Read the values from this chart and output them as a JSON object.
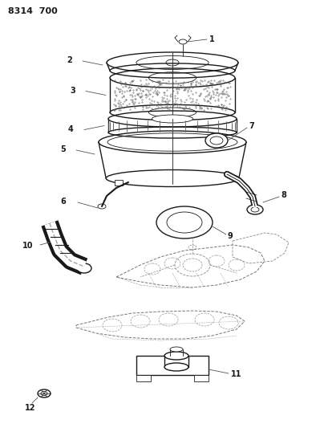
{
  "title": "8314  700",
  "bg_color": "#ffffff",
  "line_color": "#1a1a1a",
  "fig_width": 3.99,
  "fig_height": 5.33,
  "dpi": 100
}
